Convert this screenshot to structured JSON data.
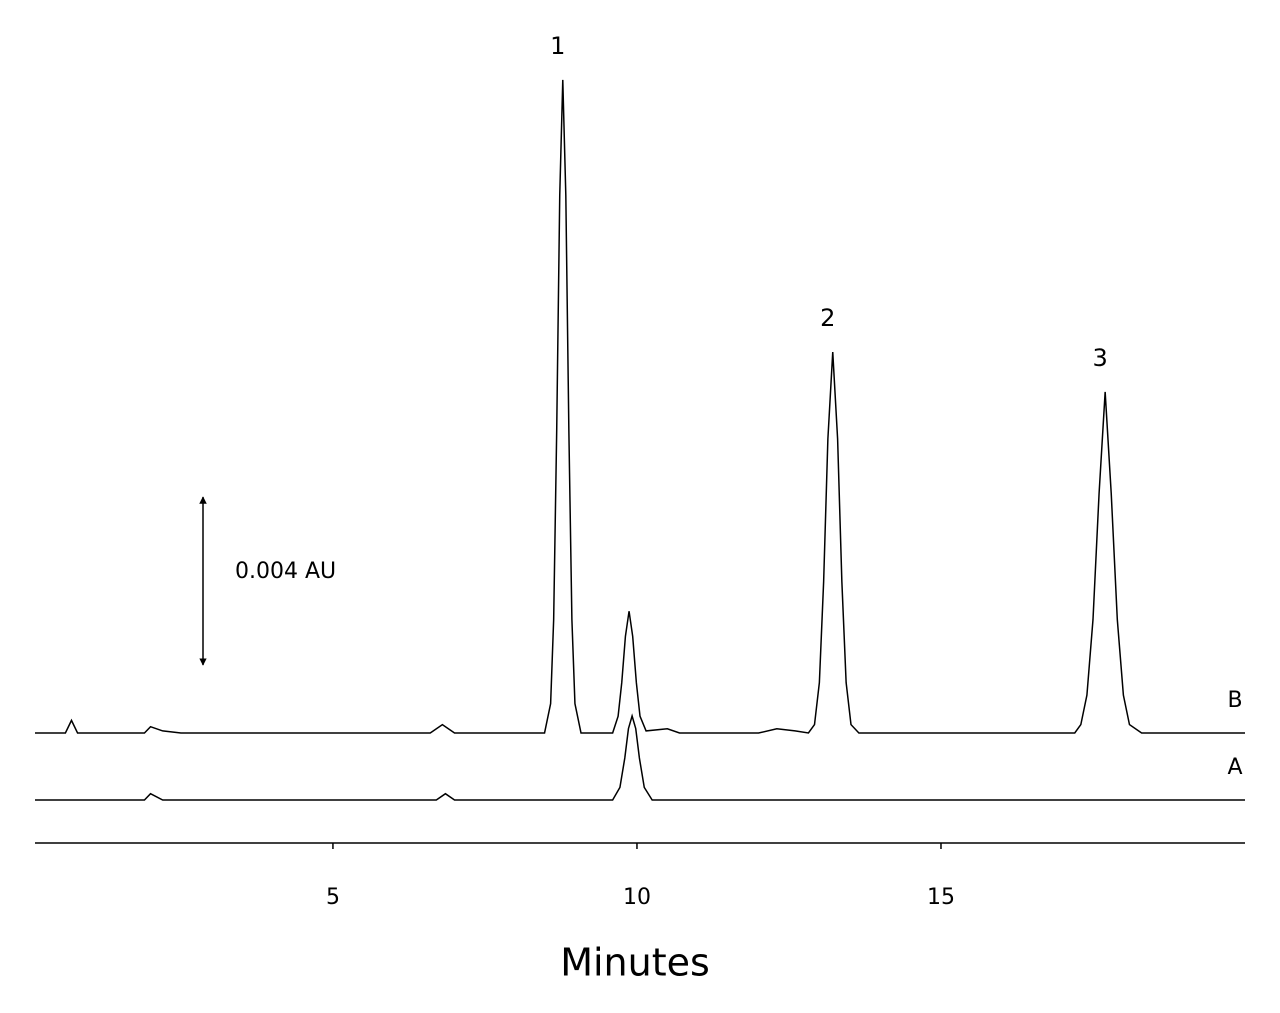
{
  "chart_data": {
    "type": "line",
    "x_label": "Minutes",
    "xlim": [
      0.1,
      20
    ],
    "xticks": [
      5,
      10,
      15
    ],
    "scale_bar": {
      "label": "0.004 AU",
      "value": 0.004
    },
    "series": [
      {
        "name": "B",
        "color": "#000000",
        "x": [
          0.1,
          0.6,
          0.7,
          0.8,
          1.9,
          2.0,
          2.2,
          2.5,
          6.6,
          6.8,
          7.0,
          8.4,
          8.48,
          8.58,
          8.63,
          8.68,
          8.73,
          8.78,
          8.83,
          8.88,
          8.93,
          8.98,
          9.08,
          9.6,
          9.69,
          9.75,
          9.81,
          9.87,
          9.93,
          9.99,
          10.05,
          10.15,
          10.5,
          10.7,
          12.0,
          12.3,
          12.6,
          12.82,
          12.92,
          13.0,
          13.07,
          13.14,
          13.22,
          13.3,
          13.37,
          13.44,
          13.52,
          13.65,
          17.2,
          17.3,
          17.4,
          17.5,
          17.6,
          17.7,
          17.8,
          17.9,
          18.0,
          18.1,
          18.3,
          20.0
        ],
        "values": [
          0,
          0,
          0.0003,
          0,
          0,
          0.00015,
          5e-05,
          0,
          0,
          0.0002,
          0,
          0,
          0,
          0.0007,
          0.0027,
          0.0072,
          0.0128,
          0.01555,
          0.0128,
          0.0072,
          0.0027,
          0.0007,
          0,
          0,
          0.0004,
          0.0012,
          0.0023,
          0.0029,
          0.0023,
          0.0012,
          0.0004,
          5e-05,
          0.0001,
          0,
          0,
          0.0001,
          5e-05,
          0,
          0.0002,
          0.0012,
          0.0036,
          0.007,
          0.00907,
          0.007,
          0.0036,
          0.0012,
          0.0002,
          0,
          0,
          0.0002,
          0.0009,
          0.0027,
          0.0057,
          0.00812,
          0.0057,
          0.0027,
          0.0009,
          0.0002,
          0,
          0
        ]
      },
      {
        "name": "A",
        "color": "#000000",
        "x": [
          0.1,
          1.9,
          2.0,
          2.2,
          6.7,
          6.85,
          7.0,
          9.6,
          9.72,
          9.8,
          9.86,
          9.92,
          9.98,
          10.04,
          10.12,
          10.25,
          20.0
        ],
        "values": [
          0,
          0,
          0.00015,
          0,
          0,
          0.00015,
          0,
          0,
          0.0003,
          0.001,
          0.0017,
          0.002,
          0.0017,
          0.001,
          0.0003,
          0,
          0
        ]
      }
    ],
    "annotations": [
      {
        "text": "1",
        "x": 8.78
      },
      {
        "text": "2",
        "x": 13.22
      },
      {
        "text": "3",
        "x": 17.7
      }
    ]
  }
}
